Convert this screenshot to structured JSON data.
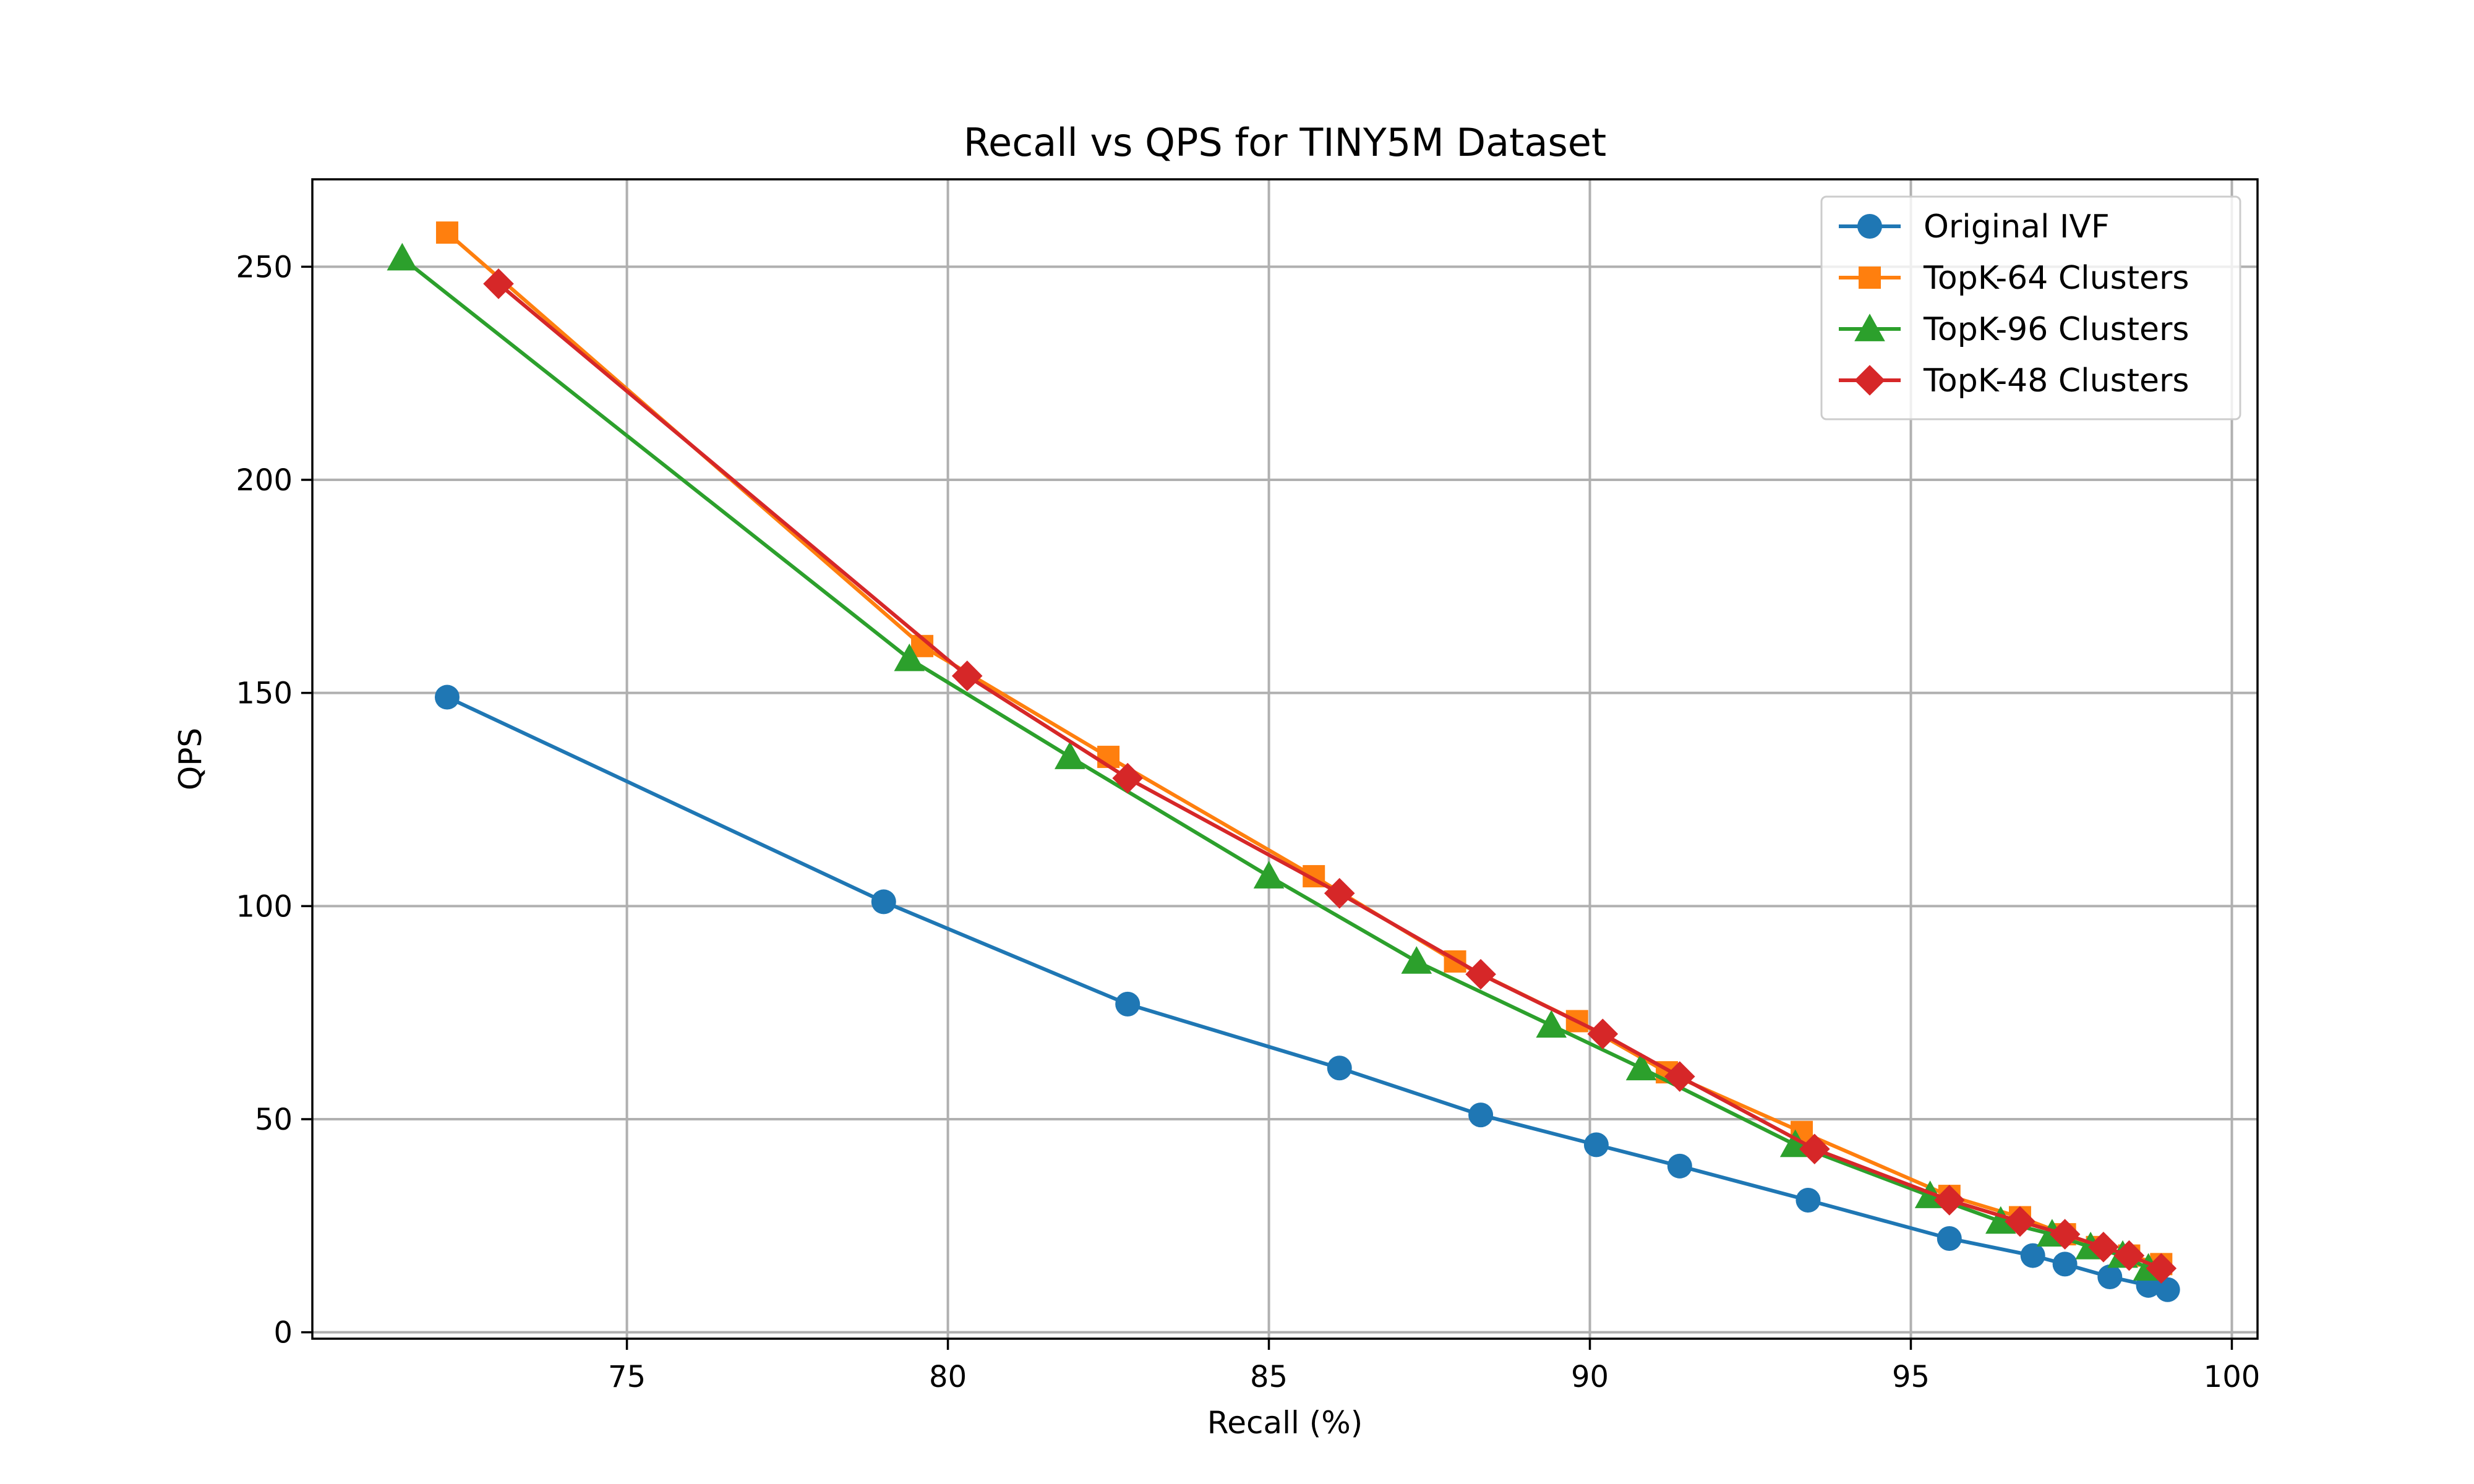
{
  "chart_data": {
    "type": "line",
    "title": "Recall vs QPS for TINY5M Dataset",
    "xlabel": "Recall (%)",
    "ylabel": "QPS",
    "xlim": [
      70.1,
      100.4
    ],
    "ylim": [
      -1.5,
      270.5
    ],
    "xticks": [
      75,
      80,
      85,
      90,
      95,
      100
    ],
    "yticks": [
      0,
      50,
      100,
      150,
      200,
      250
    ],
    "grid": true,
    "legend_position": "top-right",
    "series": [
      {
        "name": "Original IVF",
        "color": "#1f77b4",
        "marker": "circle",
        "x": [
          72.2,
          79.0,
          82.8,
          86.1,
          88.3,
          90.1,
          91.4,
          93.4,
          95.6,
          96.9,
          97.4,
          98.1,
          98.7,
          99.0
        ],
        "y": [
          149,
          101,
          77,
          62,
          51,
          44,
          39,
          31,
          22,
          18,
          16,
          13,
          11,
          10
        ]
      },
      {
        "name": "TopK-64 Clusters",
        "color": "#ff7f0e",
        "marker": "square",
        "x": [
          72.2,
          79.6,
          82.5,
          85.7,
          87.9,
          89.8,
          91.2,
          93.3,
          95.6,
          96.7,
          97.4,
          97.9,
          98.4,
          98.9
        ],
        "y": [
          258,
          161,
          135,
          107,
          87,
          73,
          61,
          47,
          32,
          27,
          23,
          20,
          18,
          16
        ]
      },
      {
        "name": "TopK-96 Clusters",
        "color": "#2ca02c",
        "marker": "triangle",
        "x": [
          71.5,
          79.4,
          81.9,
          85.0,
          87.3,
          89.4,
          90.8,
          93.2,
          95.3,
          96.4,
          97.2,
          97.8,
          98.3,
          98.7
        ],
        "y": [
          252,
          158,
          135,
          107,
          87,
          72,
          62,
          44,
          32,
          26,
          23,
          20,
          18,
          15
        ]
      },
      {
        "name": "TopK-48 Clusters",
        "color": "#d62728",
        "marker": "diamond",
        "x": [
          73.0,
          80.3,
          82.8,
          86.1,
          88.3,
          90.2,
          91.4,
          93.5,
          95.6,
          96.7,
          97.4,
          98.0,
          98.4,
          98.9
        ],
        "y": [
          246,
          154,
          130,
          103,
          84,
          70,
          60,
          43,
          31,
          26,
          23,
          20,
          18,
          15
        ]
      }
    ]
  }
}
